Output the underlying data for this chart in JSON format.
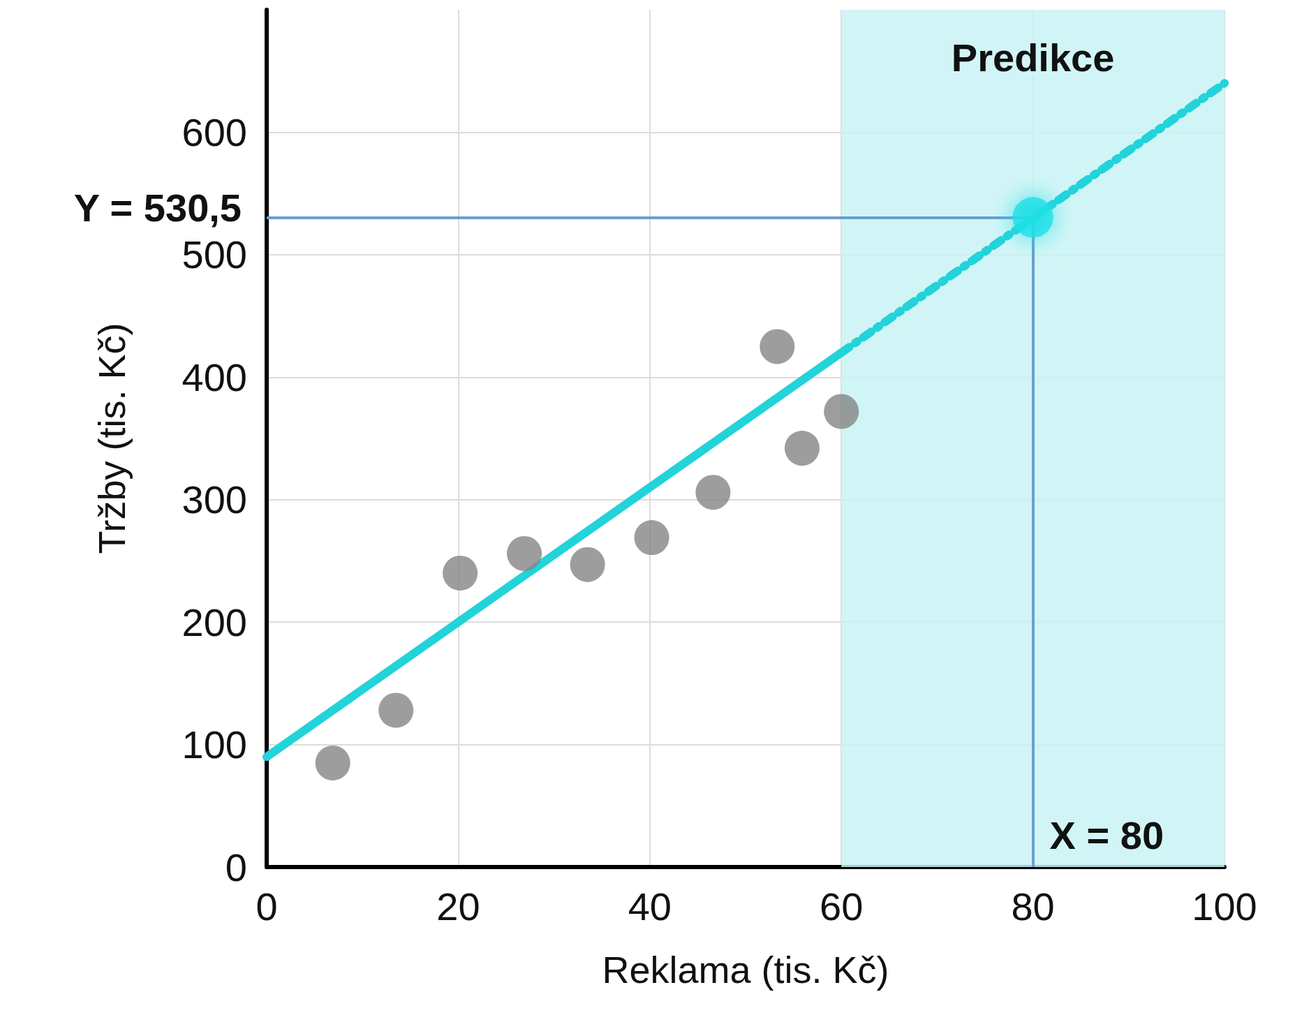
{
  "chart_data": {
    "type": "scatter",
    "xlabel": "Reklama (tis. Kč)",
    "ylabel": "Tržby (tis. Kč)",
    "xlim": [
      0,
      100
    ],
    "xticks": [
      0,
      20,
      40,
      60,
      80,
      100
    ],
    "ylim": [
      0,
      700
    ],
    "yticks": [
      0,
      100,
      200,
      300,
      400,
      500,
      600
    ],
    "grid": true,
    "series": [
      {
        "color": "#858585",
        "marker": "circle",
        "x": [
          6.9,
          13.5,
          20.2,
          26.9,
          33.5,
          40.2,
          46.6,
          53.3,
          55.9,
          60
        ],
        "values": [
          85,
          128,
          240,
          256,
          247,
          269,
          306,
          425,
          342,
          372
        ]
      },
      {
        "type": "line",
        "color": "#22d3da",
        "marker": "none",
        "line_style": "solid",
        "x": [
          0,
          60
        ],
        "values": [
          90,
          420
        ]
      },
      {
        "type": "line",
        "color": "#22d3da",
        "marker": "none",
        "line_style": "dashed",
        "x": [
          60,
          100
        ],
        "values": [
          420,
          640
        ]
      },
      {
        "color": "#1ee0e6",
        "marker": "circle",
        "x": [
          80
        ],
        "values": [
          530.5
        ]
      }
    ],
    "ref_lines": [
      {
        "axis": "y",
        "value": 530.5,
        "label": "Y = 530,5",
        "color": "#6a9fd0"
      },
      {
        "axis": "x",
        "value": 80,
        "label": "X = 80",
        "color": "#6a9fd0"
      }
    ],
    "bands": [
      {
        "axis": "x",
        "from": 60,
        "to": 100,
        "label": "Predikce",
        "color": "#c9f3f5"
      }
    ]
  }
}
